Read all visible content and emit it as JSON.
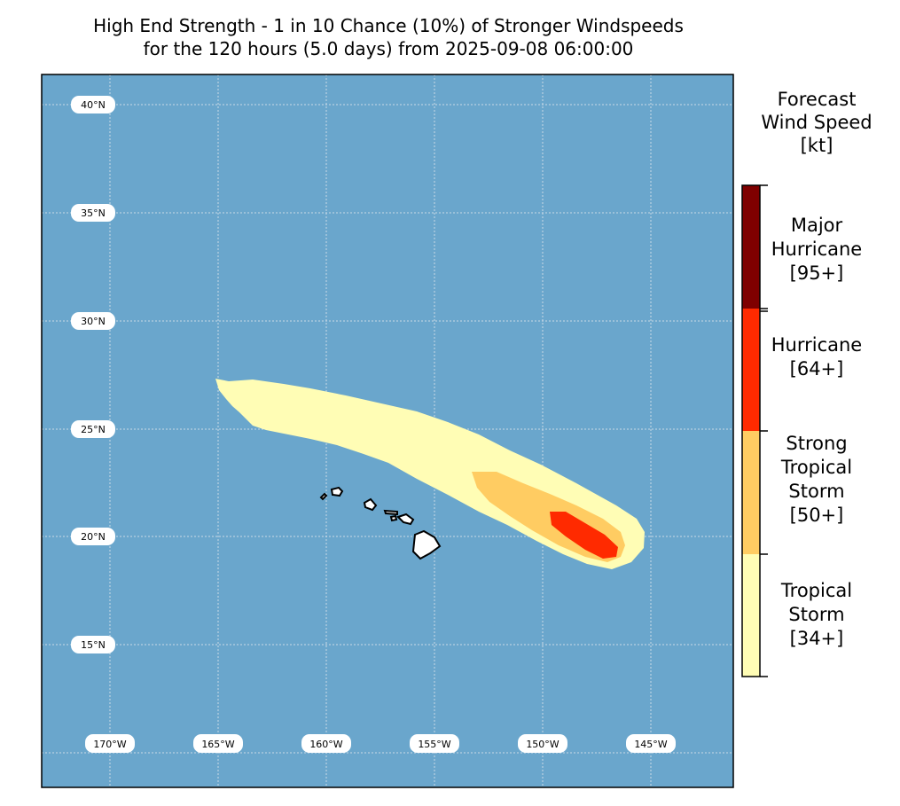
{
  "title": {
    "line1": "High End Strength - 1 in 10 Chance (10%) of Stronger Windspeeds",
    "line2": "for the 120 hours (5.0 days) from 2025-09-08 06:00:00"
  },
  "map": {
    "ocean_color": "#6aa6cc",
    "land_color": "#ffffff",
    "gridline_color": "#c9d9e6",
    "lat_labels": [
      "40°N",
      "35°N",
      "30°N",
      "25°N",
      "20°N",
      "15°N"
    ],
    "lon_labels": [
      "170°W",
      "165°W",
      "160°W",
      "155°W",
      "150°W",
      "145°W"
    ]
  },
  "colorbar": {
    "title_lines": [
      "Forecast",
      "Wind Speed",
      "[kt]"
    ],
    "categories": [
      {
        "name": "tropical-storm",
        "lines": [
          "Tropical",
          "Storm",
          "[34+]"
        ],
        "color": "#fffdb5"
      },
      {
        "name": "strong-tropical-storm",
        "lines": [
          "Strong",
          "Tropical",
          "Storm",
          "[50+]"
        ],
        "color": "#ffcc62"
      },
      {
        "name": "hurricane",
        "lines": [
          "Hurricane",
          "[64+]"
        ],
        "color": "#ff2a00"
      },
      {
        "name": "major-hurricane",
        "lines": [
          "Major",
          "Hurricane",
          "[95+]"
        ],
        "color": "#7f0000"
      }
    ]
  }
}
